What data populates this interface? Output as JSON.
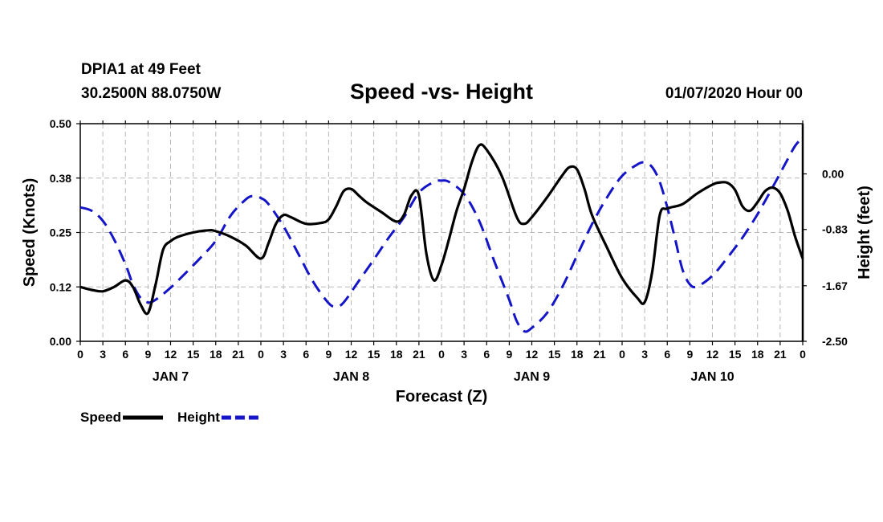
{
  "header": {
    "station": "DPIA1 at 49 Feet",
    "coords": "30.2500N 88.0750W",
    "title": "Speed -vs- Height",
    "datetime": "01/07/2020 Hour 00"
  },
  "chart_data": {
    "type": "line",
    "title": "Speed -vs- Height",
    "xlabel": "Forecast (Z)",
    "ylabel": "Speed (Knots)",
    "y2label": "Height (feet)",
    "xlim": [
      0,
      96
    ],
    "ylim": [
      0,
      0.5
    ],
    "y2lim": [
      -2.5,
      0.75
    ],
    "yticks": [
      0,
      0.125,
      0.25,
      0.375,
      0.5
    ],
    "ytick_labels": [
      "0.00",
      "0.12",
      "0.25",
      "0.38",
      "0.50"
    ],
    "y2ticks": [
      -2.5,
      -1.67,
      -0.83,
      0.0
    ],
    "y2tick_labels": [
      "-2.50",
      "-1.67",
      "-0.83",
      "0.00"
    ],
    "xticks": [
      0,
      3,
      6,
      9,
      12,
      15,
      18,
      21,
      24,
      27,
      30,
      33,
      36,
      39,
      42,
      45,
      48,
      51,
      54,
      57,
      60,
      63,
      66,
      69,
      72,
      75,
      78,
      81,
      84,
      87,
      90,
      93,
      96
    ],
    "xtick_labels": [
      "0",
      "3",
      "6",
      "9",
      "12",
      "15",
      "18",
      "21",
      "0",
      "3",
      "6",
      "9",
      "12",
      "15",
      "18",
      "21",
      "0",
      "3",
      "6",
      "9",
      "12",
      "15",
      "18",
      "21",
      "0",
      "3",
      "6",
      "9",
      "12",
      "15",
      "18",
      "21",
      "0"
    ],
    "day_labels": [
      {
        "x": 12,
        "label": "JAN 7"
      },
      {
        "x": 36,
        "label": "JAN 8"
      },
      {
        "x": 60,
        "label": "JAN 9"
      },
      {
        "x": 84,
        "label": "JAN 10"
      }
    ],
    "grid": true,
    "legend": "bottom-left",
    "series": [
      {
        "name": "Speed",
        "axis": "left",
        "color": "#000000",
        "style": "solid",
        "points": [
          [
            0,
            0.125
          ],
          [
            1.5,
            0.118
          ],
          [
            3,
            0.115
          ],
          [
            4.5,
            0.125
          ],
          [
            6,
            0.14
          ],
          [
            7,
            0.125
          ],
          [
            8,
            0.085
          ],
          [
            9,
            0.065
          ],
          [
            10,
            0.13
          ],
          [
            11,
            0.21
          ],
          [
            12,
            0.23
          ],
          [
            13,
            0.24
          ],
          [
            15,
            0.25
          ],
          [
            17,
            0.255
          ],
          [
            18,
            0.253
          ],
          [
            20,
            0.24
          ],
          [
            22,
            0.22
          ],
          [
            24,
            0.19
          ],
          [
            25,
            0.225
          ],
          [
            26,
            0.27
          ],
          [
            27,
            0.29
          ],
          [
            28,
            0.285
          ],
          [
            30,
            0.27
          ],
          [
            32,
            0.272
          ],
          [
            33,
            0.28
          ],
          [
            34,
            0.31
          ],
          [
            35,
            0.345
          ],
          [
            36,
            0.35
          ],
          [
            37,
            0.335
          ],
          [
            38,
            0.32
          ],
          [
            40,
            0.297
          ],
          [
            42,
            0.275
          ],
          [
            43,
            0.29
          ],
          [
            44,
            0.335
          ],
          [
            45,
            0.335
          ],
          [
            46,
            0.2
          ],
          [
            47,
            0.14
          ],
          [
            48,
            0.175
          ],
          [
            49,
            0.235
          ],
          [
            50,
            0.3
          ],
          [
            51,
            0.35
          ],
          [
            52,
            0.41
          ],
          [
            53,
            0.45
          ],
          [
            54,
            0.44
          ],
          [
            56,
            0.38
          ],
          [
            58,
            0.285
          ],
          [
            59,
            0.27
          ],
          [
            60,
            0.285
          ],
          [
            62,
            0.33
          ],
          [
            64,
            0.38
          ],
          [
            65,
            0.4
          ],
          [
            66,
            0.395
          ],
          [
            67,
            0.35
          ],
          [
            68,
            0.29
          ],
          [
            70,
            0.215
          ],
          [
            72,
            0.145
          ],
          [
            74,
            0.1
          ],
          [
            75,
            0.09
          ],
          [
            76,
            0.16
          ],
          [
            77,
            0.29
          ],
          [
            78,
            0.305
          ],
          [
            80,
            0.315
          ],
          [
            82,
            0.34
          ],
          [
            84,
            0.36
          ],
          [
            85,
            0.365
          ],
          [
            86,
            0.364
          ],
          [
            87,
            0.348
          ],
          [
            88,
            0.31
          ],
          [
            89,
            0.3
          ],
          [
            90,
            0.32
          ],
          [
            91,
            0.345
          ],
          [
            92,
            0.353
          ],
          [
            93,
            0.34
          ],
          [
            94,
            0.3
          ],
          [
            95,
            0.24
          ],
          [
            96,
            0.19
          ]
        ]
      },
      {
        "name": "Height",
        "axis": "right",
        "color": "#1414c8",
        "style": "dashed",
        "points": [
          [
            0,
            -0.5
          ],
          [
            1.5,
            -0.55
          ],
          [
            3,
            -0.7
          ],
          [
            4.5,
            -0.98
          ],
          [
            6,
            -1.35
          ],
          [
            7,
            -1.65
          ],
          [
            8,
            -1.85
          ],
          [
            9,
            -1.92
          ],
          [
            10,
            -1.88
          ],
          [
            12,
            -1.7
          ],
          [
            14,
            -1.48
          ],
          [
            16,
            -1.25
          ],
          [
            18,
            -1.0
          ],
          [
            20,
            -0.62
          ],
          [
            22,
            -0.38
          ],
          [
            23,
            -0.33
          ],
          [
            24,
            -0.36
          ],
          [
            25,
            -0.45
          ],
          [
            27,
            -0.78
          ],
          [
            29,
            -1.2
          ],
          [
            31,
            -1.62
          ],
          [
            33,
            -1.93
          ],
          [
            34,
            -1.98
          ],
          [
            35,
            -1.92
          ],
          [
            37,
            -1.6
          ],
          [
            39,
            -1.28
          ],
          [
            41,
            -0.95
          ],
          [
            43,
            -0.65
          ],
          [
            45,
            -0.28
          ],
          [
            47,
            -0.12
          ],
          [
            48,
            -0.1
          ],
          [
            49,
            -0.12
          ],
          [
            51,
            -0.3
          ],
          [
            53,
            -0.7
          ],
          [
            55,
            -1.3
          ],
          [
            57,
            -1.88
          ],
          [
            58,
            -2.2
          ],
          [
            59,
            -2.35
          ],
          [
            60,
            -2.3
          ],
          [
            62,
            -2.08
          ],
          [
            64,
            -1.7
          ],
          [
            66,
            -1.22
          ],
          [
            68,
            -0.75
          ],
          [
            70,
            -0.35
          ],
          [
            72,
            -0.03
          ],
          [
            74,
            0.14
          ],
          [
            75,
            0.17
          ],
          [
            76,
            0.1
          ],
          [
            77,
            -0.12
          ],
          [
            78,
            -0.5
          ],
          [
            79,
            -0.95
          ],
          [
            80,
            -1.42
          ],
          [
            81,
            -1.65
          ],
          [
            82,
            -1.68
          ],
          [
            84,
            -1.52
          ],
          [
            86,
            -1.25
          ],
          [
            88,
            -0.95
          ],
          [
            90,
            -0.6
          ],
          [
            92,
            -0.2
          ],
          [
            94,
            0.22
          ],
          [
            95,
            0.42
          ],
          [
            96,
            0.55
          ]
        ]
      }
    ]
  }
}
